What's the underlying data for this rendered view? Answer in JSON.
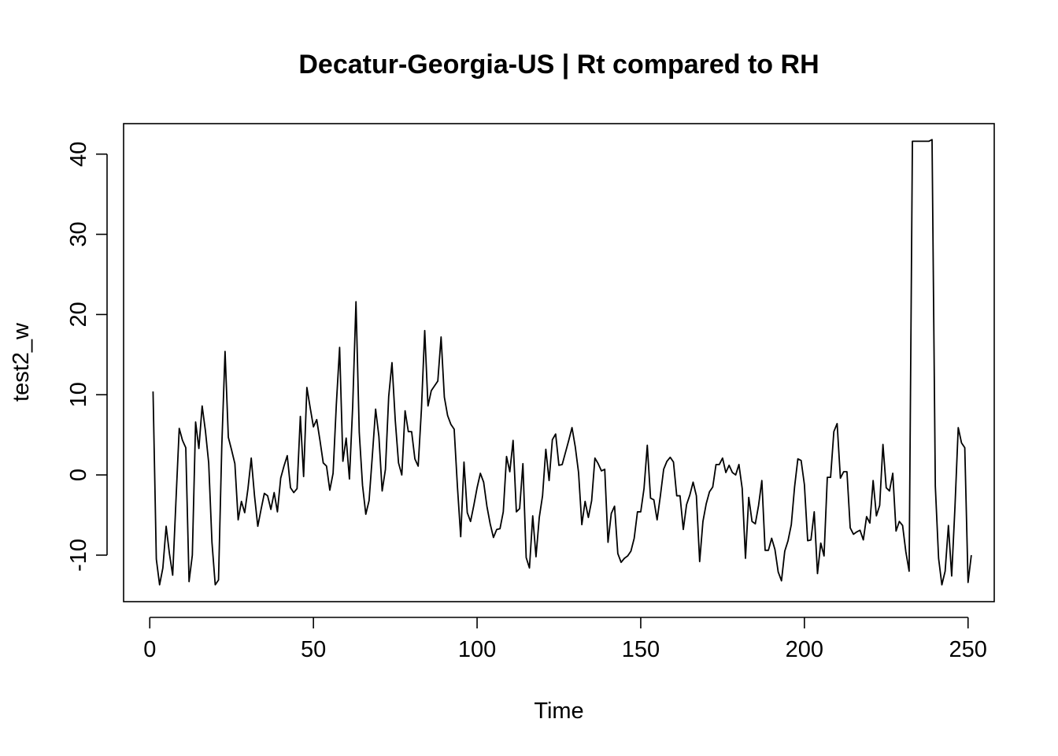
{
  "chart_data": {
    "type": "line",
    "title": "Decatur-Georgia-US | Rt compared to RH",
    "xlabel": "Time",
    "ylabel": "test2_w",
    "xlim": [
      -8,
      258
    ],
    "ylim": [
      -15.8,
      43.8
    ],
    "x_ticks": [
      0,
      50,
      100,
      150,
      200,
      250
    ],
    "y_ticks": [
      -10,
      0,
      10,
      20,
      30,
      40
    ],
    "x_tick_labels": [
      "0",
      "50",
      "100",
      "150",
      "200",
      "250"
    ],
    "y_tick_labels": [
      "-10",
      "0",
      "10",
      "20",
      "30",
      "40"
    ],
    "grid": false,
    "legend": "none",
    "line_color": "#000000",
    "series": [
      {
        "x_start": 1,
        "values": [
          10.4,
          -10.5,
          -13.7,
          -11.6,
          -6.4,
          -9.8,
          -12.5,
          -3.2,
          5.8,
          4.3,
          3.4,
          -13.3,
          -10,
          6.6,
          3.3,
          8.6,
          5.5,
          1.5,
          -8.4,
          -13.7,
          -13.1,
          3.6,
          15.4,
          4.7,
          3.1,
          1.4,
          -5.6,
          -3.3,
          -4.7,
          -1.7,
          2.1,
          -2.6,
          -6.4,
          -4.3,
          -2.3,
          -2.6,
          -4.3,
          -2.2,
          -4.6,
          -0.4,
          1.1,
          2.4,
          -1.6,
          -2.2,
          -1.7,
          7.3,
          -0.2,
          10.9,
          8.4,
          6,
          6.9,
          4.3,
          1.5,
          1.1,
          -1.9,
          0.2,
          8.8,
          15.9,
          1.7,
          4.6,
          -0.5,
          8.6,
          21.6,
          5.3,
          -1.3,
          -4.9,
          -3.2,
          2.4,
          8.2,
          4.8,
          -2,
          0.7,
          9.8,
          14,
          6.8,
          1.5,
          0,
          8,
          5.4,
          5.4,
          2,
          1.1,
          8.2,
          18,
          8.6,
          10.5,
          11.1,
          11.7,
          17.2,
          9.7,
          7.4,
          6.3,
          5.7,
          -1.5,
          -7.7,
          1.6,
          -4.7,
          -5.8,
          -3.8,
          -1.6,
          0.2,
          -0.9,
          -3.9,
          -6.1,
          -7.8,
          -6.8,
          -6.7,
          -4.6,
          2.3,
          0.4,
          4.3,
          -4.6,
          -4.2,
          1.4,
          -10.3,
          -11.6,
          -5.1,
          -10.2,
          -5.3,
          -2.6,
          3.2,
          -0.7,
          4.4,
          5.1,
          1.2,
          1.3,
          2.8,
          4.3,
          5.9,
          3.5,
          0.3,
          -6.2,
          -3.3,
          -5.3,
          -3.2,
          2.1,
          1.4,
          0.5,
          0.7,
          -8.4,
          -4.8,
          -3.9,
          -9.8,
          -10.9,
          -10.4,
          -10.1,
          -9.5,
          -7.9,
          -4.6,
          -4.6,
          -1.7,
          3.7,
          -2.9,
          -3.1,
          -5.6,
          -2.6,
          0.7,
          1.7,
          2.2,
          1.6,
          -2.6,
          -2.6,
          -6.8,
          -3.7,
          -2.5,
          -0.9,
          -2.6,
          -10.8,
          -5.8,
          -3.6,
          -2.1,
          -1.5,
          1.3,
          1.3,
          2.1,
          0.3,
          1.2,
          0.3,
          0,
          1.3,
          -1.7,
          -10.4,
          -2.8,
          -5.8,
          -6.1,
          -3.8,
          -0.7,
          -9.4,
          -9.4,
          -7.9,
          -9.3,
          -12.1,
          -13.2,
          -9.5,
          -8.2,
          -6.2,
          -1.5,
          2,
          1.8,
          -1.2,
          -8.2,
          -8.1,
          -4.6,
          -12.3,
          -8.5,
          -10.1,
          -0.3,
          -0.3,
          5.4,
          6.4,
          -0.4,
          0.4,
          0.4,
          -6.6,
          -7.4,
          -7.1,
          -6.9,
          -8.1,
          -5.2,
          -6,
          -0.7,
          -5.1,
          -3.8,
          3.8,
          -1.6,
          -2,
          0.2,
          -7,
          -5.8,
          -6.3,
          -9.6,
          -12,
          41.6,
          41.6,
          41.6,
          41.6,
          41.6,
          41.6,
          41.8,
          -1.4,
          -10.4,
          -13.7,
          -12,
          -6.3,
          -12.6,
          -4,
          5.9,
          4,
          3.4,
          -13.4,
          -10
        ]
      }
    ]
  }
}
